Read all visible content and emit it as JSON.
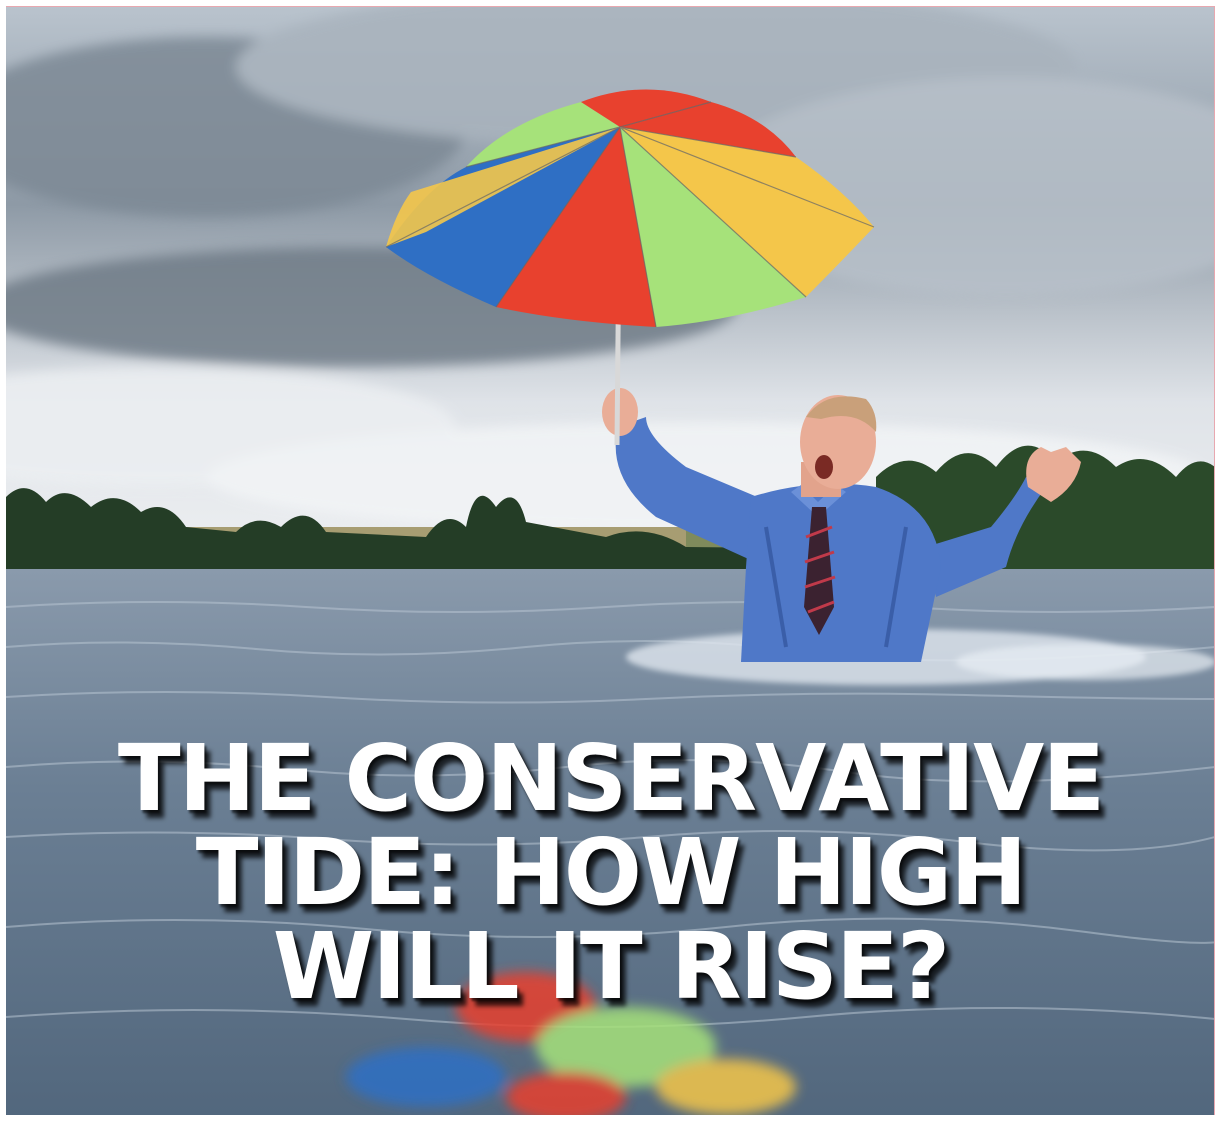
{
  "headline": {
    "line1": "THE CONSERVATIVE",
    "line2": "TIDE: HOW HIGH",
    "line3": "WILL IT RISE?"
  },
  "colors": {
    "text": "#ffffff",
    "sky": "#c9d0d8",
    "water": "#6f8296",
    "shirt": "#4f78c8",
    "umbrella_red": "#e8412e",
    "umbrella_blue": "#2f6fc4",
    "umbrella_green": "#a6e27a",
    "umbrella_yellow": "#f4c64a"
  }
}
